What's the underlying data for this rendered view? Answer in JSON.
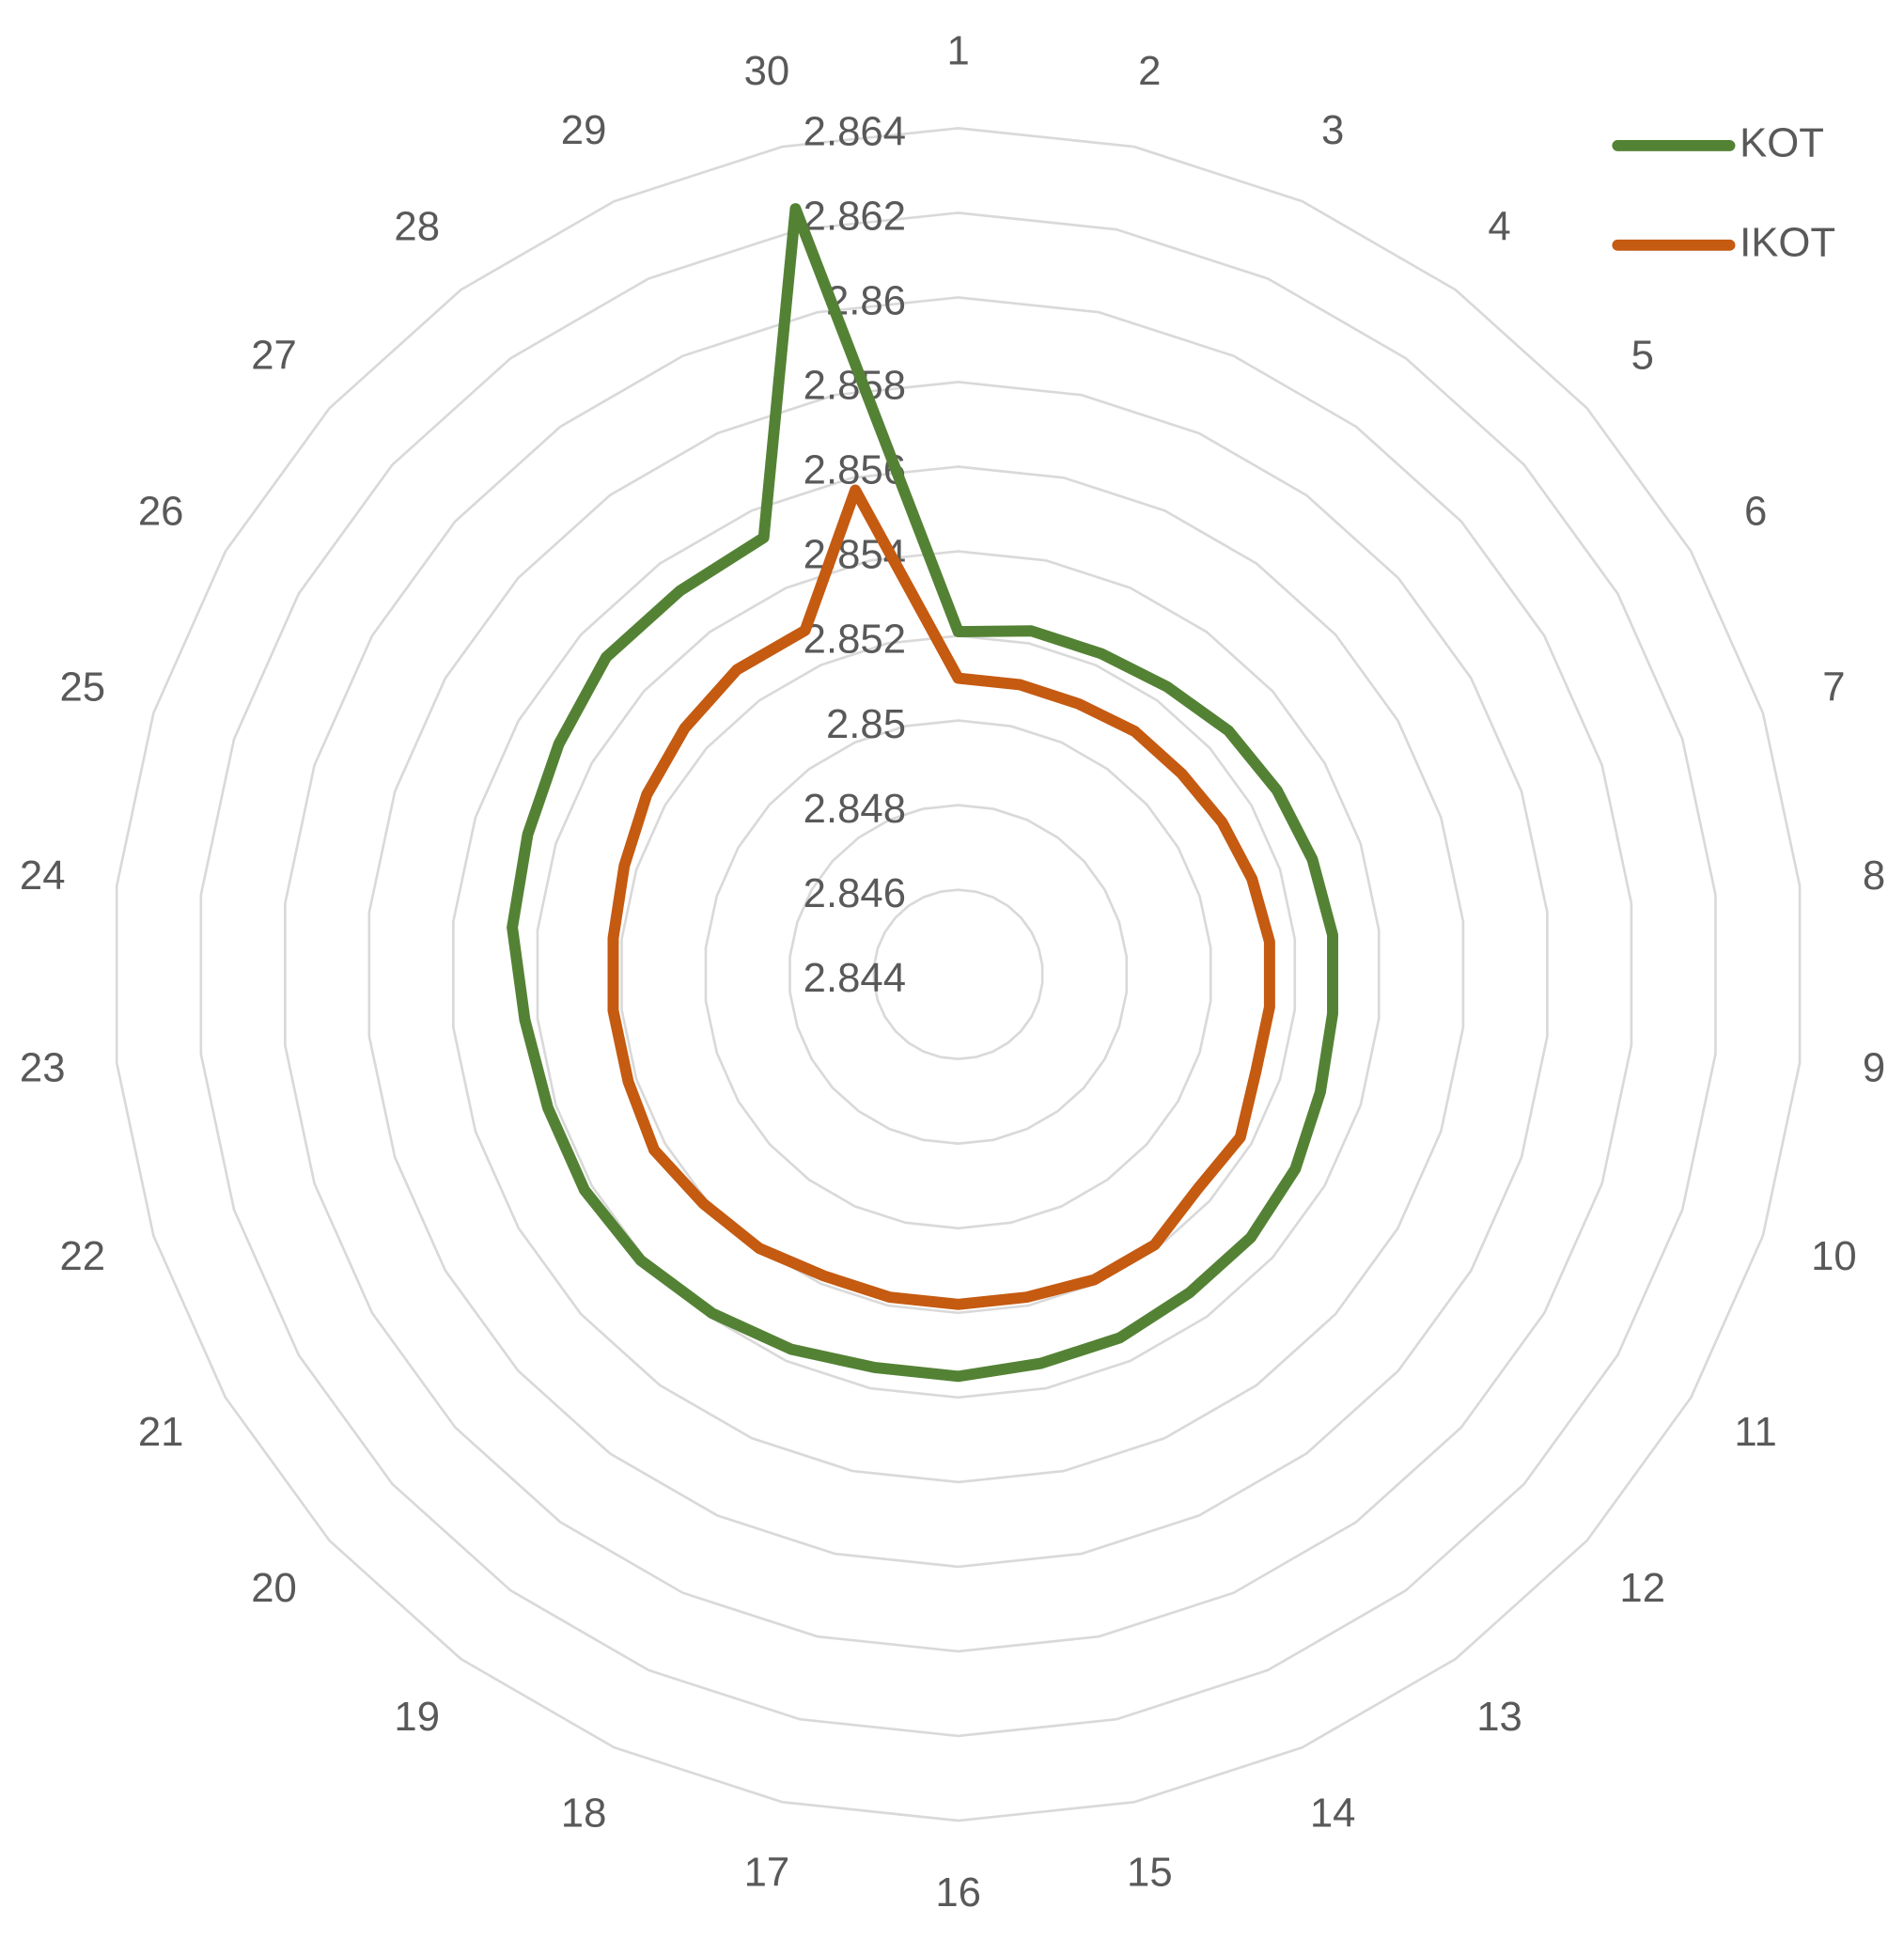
{
  "chart_data": {
    "type": "radar",
    "categories": [
      "1",
      "2",
      "3",
      "4",
      "5",
      "6",
      "7",
      "8",
      "9",
      "10",
      "11",
      "12",
      "13",
      "14",
      "15",
      "16",
      "17",
      "18",
      "19",
      "20",
      "21",
      "22",
      "23",
      "24",
      "25",
      "26",
      "27",
      "28",
      "29",
      "30"
    ],
    "series": [
      {
        "name": "KOT",
        "color": "#548235",
        "values": [
          2.8521,
          2.8523,
          2.8523,
          2.8524,
          2.8526,
          2.8527,
          2.8528,
          2.8529,
          2.8529,
          2.853,
          2.8532,
          2.8533,
          2.8533,
          2.8534,
          2.8534,
          2.8535,
          2.8535,
          2.8537,
          2.8539,
          2.8541,
          2.8542,
          2.8542,
          2.8543,
          2.8546,
          2.8547,
          2.8549,
          2.8552,
          2.8552,
          2.8553,
          2.8625
        ]
      },
      {
        "name": "IKOT",
        "color": "#c55a11",
        "values": [
          2.851,
          2.851,
          2.851,
          2.8511,
          2.8511,
          2.8512,
          2.8513,
          2.8514,
          2.8514,
          2.8514,
          2.8517,
          2.8516,
          2.8519,
          2.8519,
          2.8518,
          2.8518,
          2.8518,
          2.8518,
          2.852,
          2.8521,
          2.8523,
          2.8522,
          2.8522,
          2.8522,
          2.8523,
          2.8525,
          2.8527,
          2.8529,
          2.8529,
          2.8557
        ]
      }
    ],
    "ylim": [
      2.844,
      2.864
    ],
    "yticks": [
      2.844,
      2.846,
      2.848,
      2.85,
      2.852,
      2.854,
      2.856,
      2.858,
      2.86,
      2.862,
      2.864
    ],
    "grid": true,
    "legend": "top-right"
  }
}
